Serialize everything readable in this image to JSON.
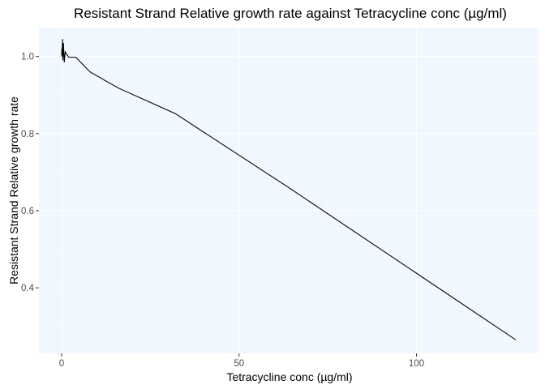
{
  "chart_data": {
    "type": "line",
    "title": "Resistant Strand Relative growth rate against Tetracycline conc (µg/ml)",
    "xlabel": "Tetracycline conc (µg/ml)",
    "ylabel": "Resistant Strand Relative growth rate",
    "xlim": [
      -6.4,
      134.4
    ],
    "ylim": [
      0.23,
      1.075
    ],
    "x_ticks": [
      0,
      50,
      100
    ],
    "x_tick_labels": [
      "0",
      "50",
      "100"
    ],
    "y_ticks": [
      0.4,
      0.6,
      0.8,
      1.0
    ],
    "y_tick_labels": [
      "0.4",
      "0.6",
      "0.8",
      "1.0"
    ],
    "grid": true,
    "legend": "none",
    "series": [
      {
        "x": [
          0,
          0.0625,
          0.125,
          0.25,
          0.35,
          0.5,
          0.75,
          1,
          1.5,
          2,
          4,
          8,
          16,
          32,
          64,
          128
        ],
        "y": [
          1.0,
          1.02,
          1.005,
          1.045,
          0.99,
          1.035,
          0.985,
          1.012,
          1.005,
          0.998,
          0.998,
          0.96,
          0.918,
          0.852,
          0.66,
          0.265
        ]
      }
    ],
    "colors": {
      "panel_background": "#F0F7FF",
      "grid_major": "#FFFFFF",
      "line": "#000000",
      "tick_label": "#4D4D4D"
    }
  }
}
